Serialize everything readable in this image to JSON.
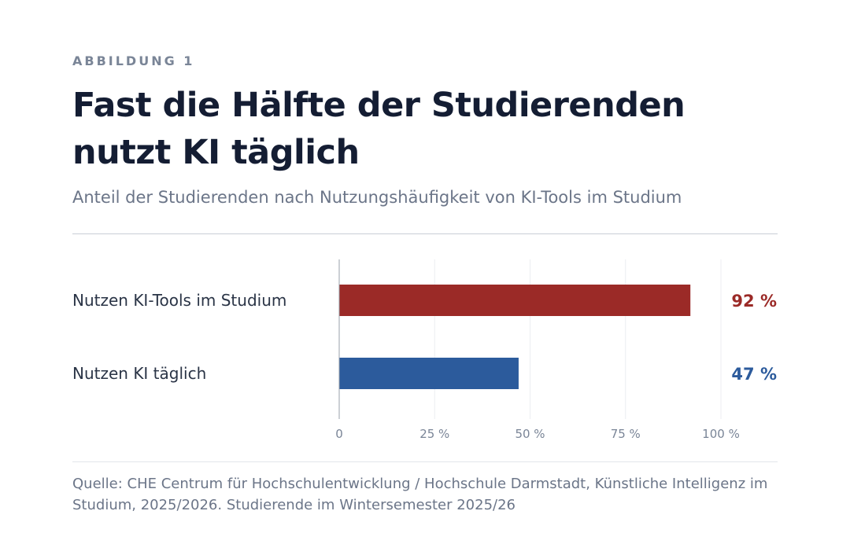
{
  "figure": {
    "kicker": "ABBILDUNG 1",
    "title": "Fast die Hälfte der Studierenden nutzt KI täglich",
    "subtitle": "Anteil der Studierenden nach Nutzungshäufigkeit von KI-Tools im Studium",
    "source": "Quelle: CHE Centrum für Hochschulentwicklung / Hochschule Darmstadt, Künstliche Intelligenz im Studium, 2025/2026. Studierende im Wintersemester 2025/26"
  },
  "chart_data": {
    "type": "bar",
    "orientation": "horizontal",
    "categories": [
      "Nutzen KI-Tools im Studium",
      "Nutzen KI täglich"
    ],
    "values": [
      92,
      47
    ],
    "value_labels": [
      "92 %",
      "47 %"
    ],
    "colors": [
      "#9b2a27",
      "#2c5b9c"
    ],
    "xlim": [
      0,
      100
    ],
    "xticks": [
      0,
      25,
      50,
      75,
      100
    ],
    "xtick_labels": [
      "0",
      "25 %",
      "50 %",
      "75 %",
      "100 %"
    ],
    "grid": true,
    "legend": "none"
  }
}
